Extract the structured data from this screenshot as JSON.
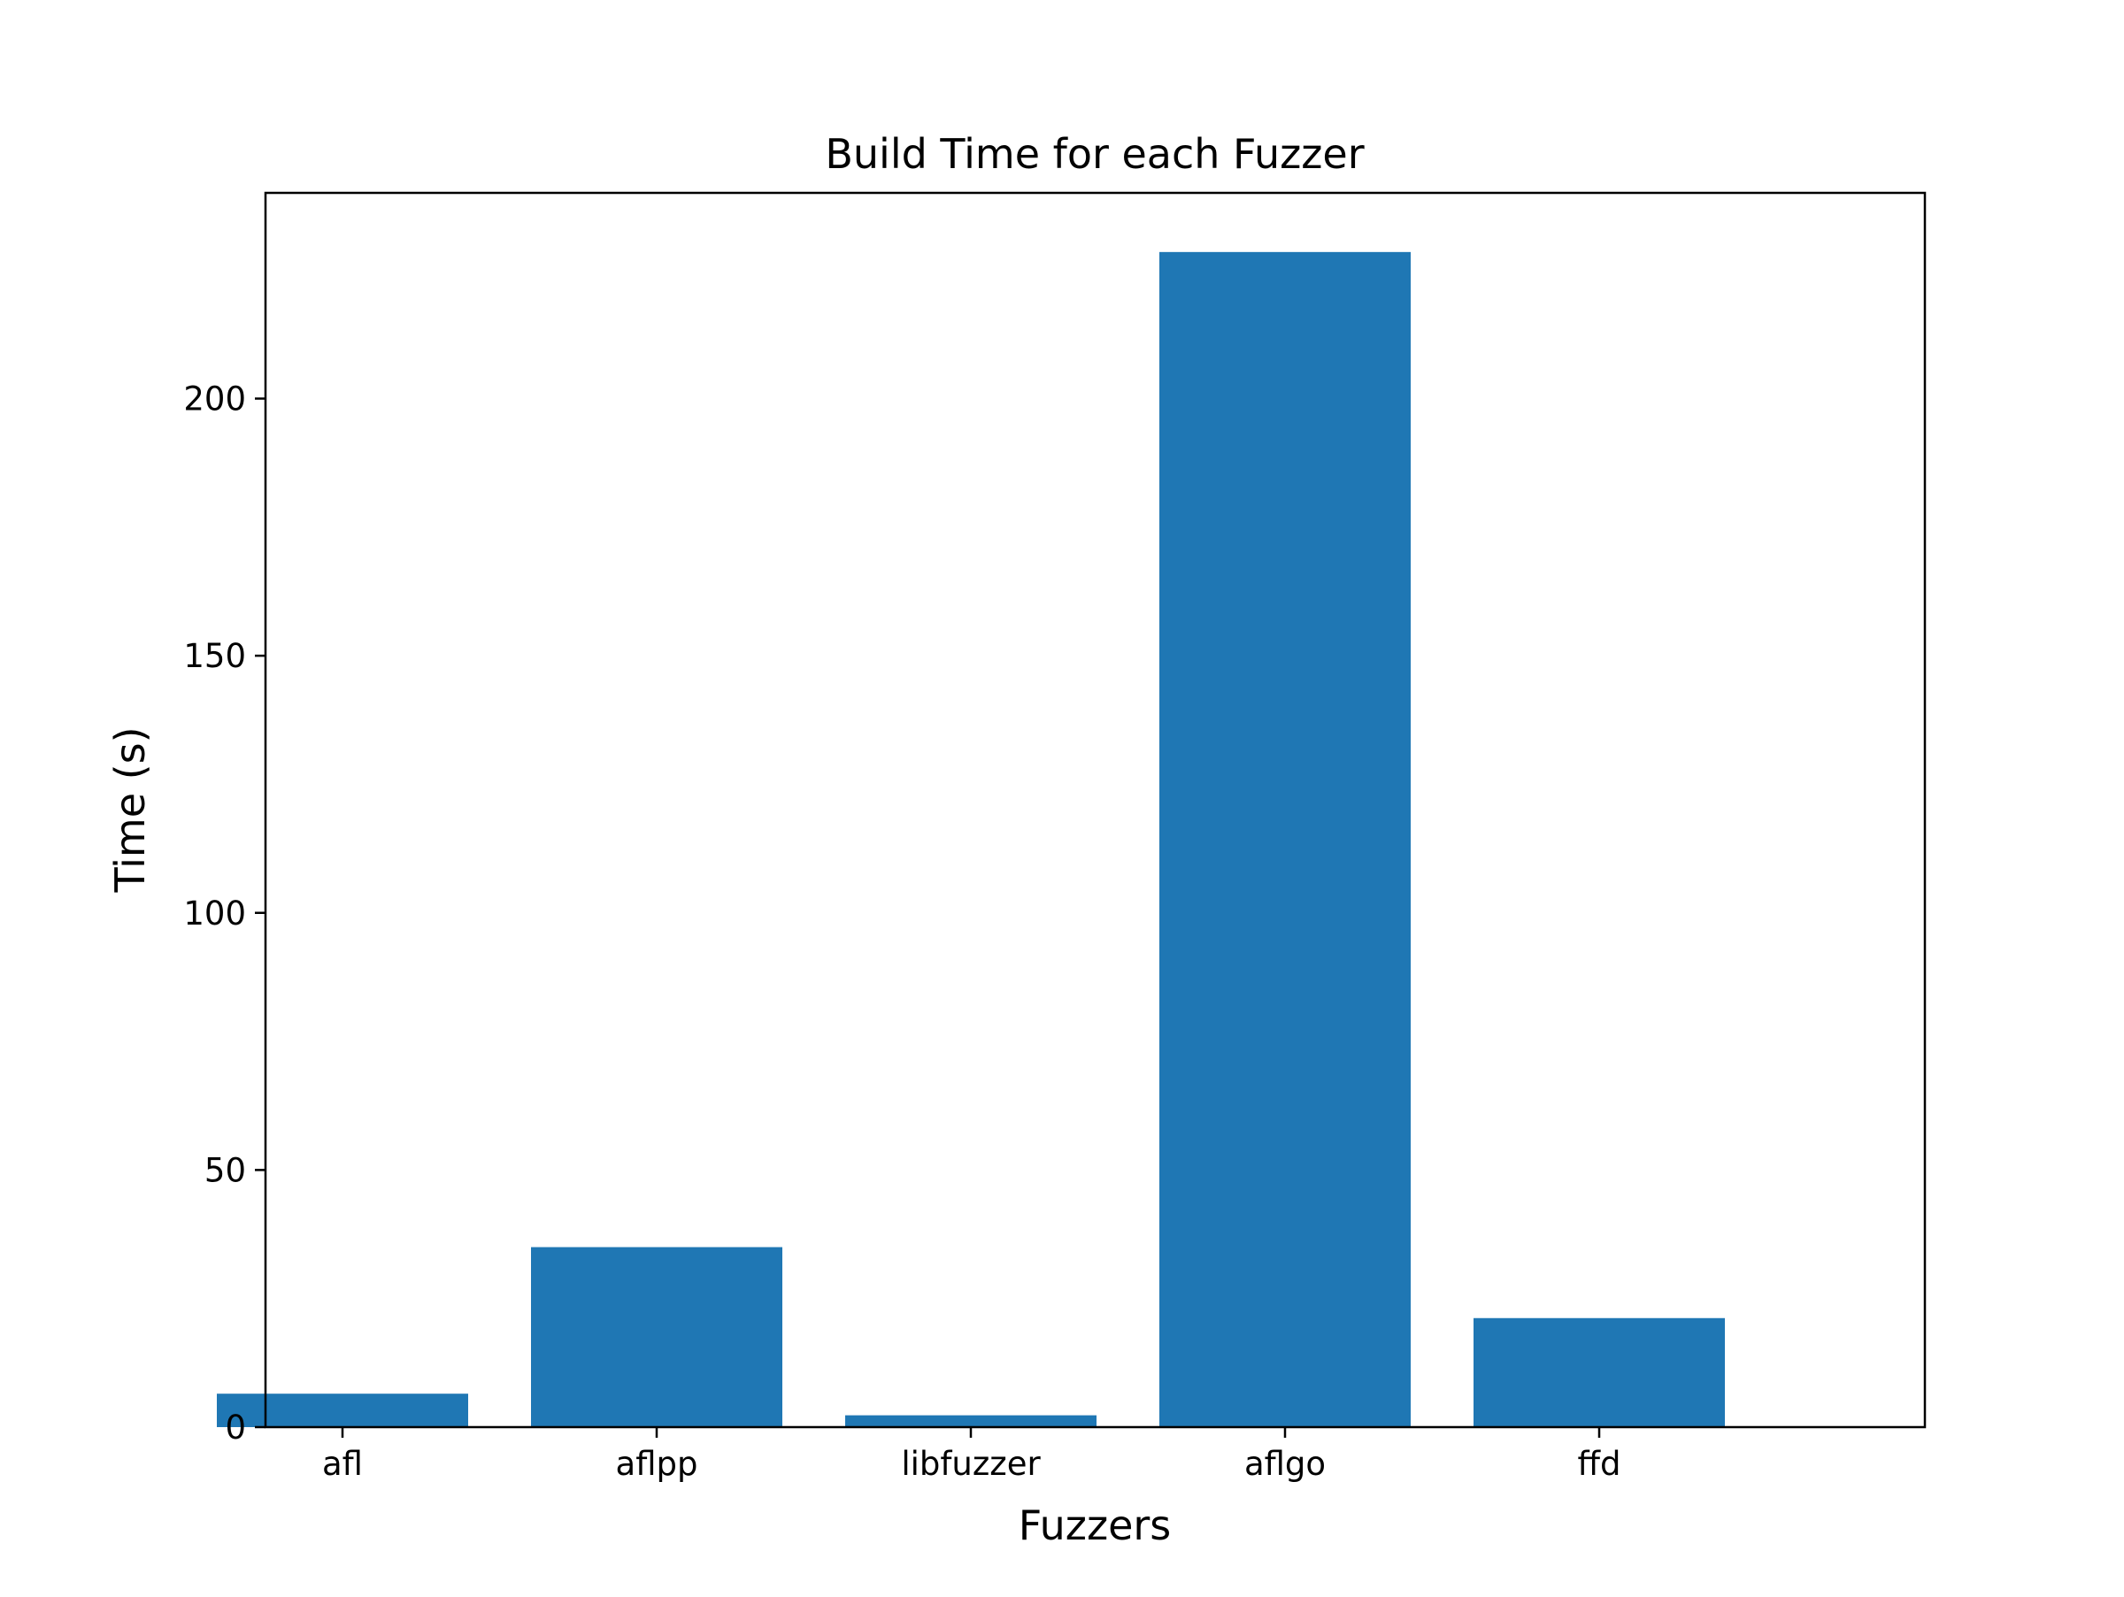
{
  "chart_data": {
    "type": "bar",
    "title": "Build Time for each Fuzzer",
    "xlabel": "Fuzzers",
    "ylabel": "Time (s)",
    "categories": [
      "afl",
      "aflpp",
      "libfuzzer",
      "aflgo",
      "ffd"
    ],
    "values": [
      6.5,
      35,
      2.3,
      228.5,
      21.2
    ],
    "ylim": [
      0,
      240
    ],
    "yticks": [
      0,
      50,
      100,
      150,
      200
    ],
    "bar_color": "#1f77b4",
    "grid": false,
    "legend": "none"
  }
}
